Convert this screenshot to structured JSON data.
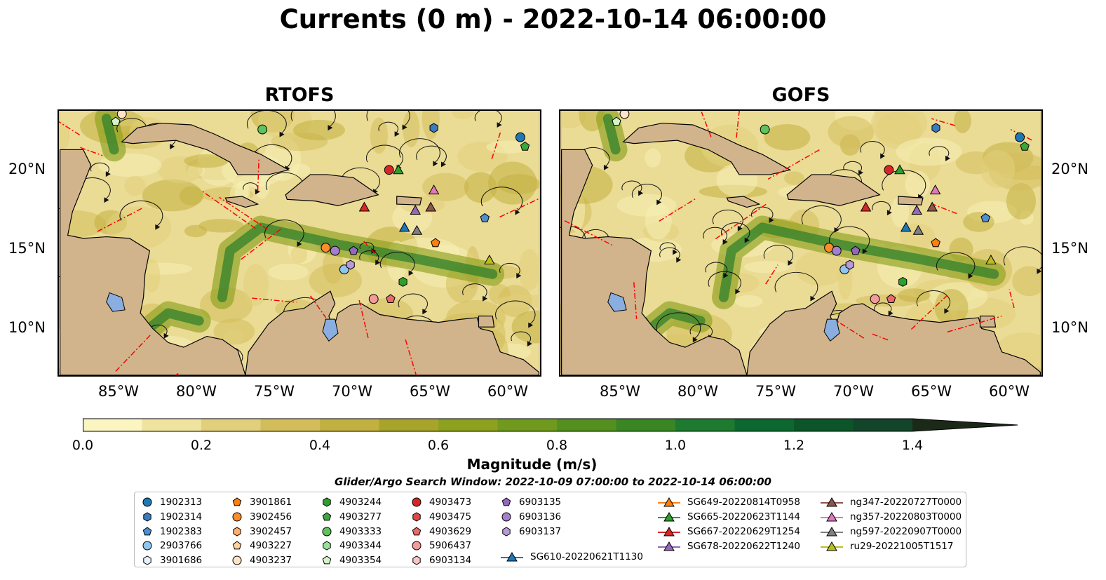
{
  "title": "Currents (0 m) - 2022-10-14 06:00:00",
  "panels": [
    {
      "name": "rtofs",
      "title": "RTOFS"
    },
    {
      "name": "gofs",
      "title": "GOFS"
    }
  ],
  "axes": {
    "x_ticks": [
      "85°W",
      "80°W",
      "75°W",
      "70°W",
      "65°W",
      "60°W"
    ],
    "y_ticks": [
      "20°N",
      "15°N",
      "10°N"
    ]
  },
  "colorbar": {
    "label": "Magnitude (m/s)",
    "ticks": [
      "0.0",
      "0.2",
      "0.4",
      "0.6",
      "0.8",
      "1.0",
      "1.2",
      "1.4"
    ],
    "range": [
      0,
      1.5
    ],
    "extend": "max",
    "colors": [
      "#fbf5c1",
      "#f0e3a0",
      "#e2cf7c",
      "#d3bd5b",
      "#c2b040",
      "#a8a42b",
      "#8ea11e",
      "#6f9a1e",
      "#549020",
      "#3a8624",
      "#1d7a2e",
      "#0d6830",
      "#0b5528",
      "#12452a",
      "#1a3420",
      "#1b2a18"
    ]
  },
  "search_window": "Glider/Argo Search Window: 2022-10-09 07:00:00 to 2022-10-14 06:00:00",
  "legend": {
    "argo": [
      {
        "label": "1902313",
        "marker": "circle",
        "color": "#1f77b4"
      },
      {
        "label": "1902314",
        "marker": "hexagon",
        "color": "#3a7bbf"
      },
      {
        "label": "1902383",
        "marker": "pentagon",
        "color": "#4f8fd0"
      },
      {
        "label": "2903766",
        "marker": "circle",
        "color": "#8fc4ec"
      },
      {
        "label": "3901686",
        "marker": "hexagon",
        "color": "#e8f2fb"
      },
      {
        "label": "3901861",
        "marker": "pentagon",
        "color": "#ff7f0e"
      },
      {
        "label": "3902456",
        "marker": "circle",
        "color": "#ff8c2a"
      },
      {
        "label": "3902457",
        "marker": "hexagon",
        "color": "#ffae6b"
      },
      {
        "label": "4903227",
        "marker": "pentagon",
        "color": "#ffd0a0"
      },
      {
        "label": "4903237",
        "marker": "circle",
        "color": "#ffe3c8"
      },
      {
        "label": "4903244",
        "marker": "hexagon",
        "color": "#2ca02c"
      },
      {
        "label": "4903277",
        "marker": "pentagon",
        "color": "#3aa83a"
      },
      {
        "label": "4903333",
        "marker": "circle",
        "color": "#5fc25f"
      },
      {
        "label": "4903344",
        "marker": "hexagon",
        "color": "#98e098"
      },
      {
        "label": "4903354",
        "marker": "pentagon",
        "color": "#d2f5c8"
      },
      {
        "label": "4903473",
        "marker": "circle",
        "color": "#d62728"
      },
      {
        "label": "4903475",
        "marker": "hexagon",
        "color": "#e04848"
      },
      {
        "label": "4903629",
        "marker": "pentagon",
        "color": "#ea6a6a"
      },
      {
        "label": "5906437",
        "marker": "circle",
        "color": "#f39a9a"
      },
      {
        "label": "6903134",
        "marker": "hexagon",
        "color": "#f8c4c4"
      },
      {
        "label": "6903135",
        "marker": "pentagon",
        "color": "#9467bd"
      },
      {
        "label": "6903136",
        "marker": "circle",
        "color": "#a57fcc"
      },
      {
        "label": "6903137",
        "marker": "hexagon",
        "color": "#b99ad8"
      }
    ],
    "gliders": [
      {
        "label": "SG610-20220621T1130",
        "color": "#1f77b4"
      },
      {
        "label": "SG649-20220814T0958",
        "color": "#ff7f0e"
      },
      {
        "label": "SG665-20220623T1144",
        "color": "#2ca02c"
      },
      {
        "label": "SG667-20220629T1254",
        "color": "#d62728"
      },
      {
        "label": "SG678-20220622T1240",
        "color": "#9467bd"
      },
      {
        "label": "ng347-20220727T0000",
        "color": "#8c564b"
      },
      {
        "label": "ng357-20220803T0000",
        "color": "#e377c2"
      },
      {
        "label": "ng597-20220907T0000",
        "color": "#7f7f7f"
      },
      {
        "label": "ru29-20221005T1517",
        "color": "#bcbd22"
      }
    ]
  },
  "map_data": {
    "lon_range": [
      -89,
      -58
    ],
    "lat_range": [
      7,
      24
    ],
    "land_color": "#d2b48c",
    "lake_color": "#8aaee0",
    "eez_line_color": "#ff0000",
    "argo_positions": [
      {
        "label": "1902313",
        "lon": -59.2,
        "lat": 22.3
      },
      {
        "label": "1902314",
        "lon": -64.8,
        "lat": 22.9
      },
      {
        "label": "2903766",
        "lon": -70.6,
        "lat": 13.8
      },
      {
        "label": "3901861",
        "lon": -64.7,
        "lat": 15.5
      },
      {
        "label": "3902456",
        "lon": -71.8,
        "lat": 15.2
      },
      {
        "label": "4903237",
        "lon": -85.0,
        "lat": 23.8
      },
      {
        "label": "4903244",
        "lon": -66.8,
        "lat": 13.0
      },
      {
        "label": "4903333",
        "lon": -75.9,
        "lat": 22.8
      },
      {
        "label": "4903354",
        "lon": -85.4,
        "lat": 23.3
      },
      {
        "label": "4903473",
        "lon": -67.7,
        "lat": 20.2
      },
      {
        "label": "5906437",
        "lon": -68.7,
        "lat": 11.9
      },
      {
        "label": "4903629",
        "lon": -67.6,
        "lat": 11.9
      },
      {
        "label": "6903135",
        "lon": -70.0,
        "lat": 15.0
      },
      {
        "label": "6903136",
        "lon": -71.2,
        "lat": 15.0
      },
      {
        "label": "6903137",
        "lon": -70.2,
        "lat": 14.1
      },
      {
        "label": "4903277",
        "lon": -58.9,
        "lat": 21.7
      },
      {
        "label": "1902383",
        "lon": -61.5,
        "lat": 17.1
      }
    ],
    "glider_positions": [
      {
        "label": "SG610-20220621T1130",
        "lon": -66.7,
        "lat": 16.5
      },
      {
        "label": "SG665-20220623T1144",
        "lon": -67.1,
        "lat": 20.2
      },
      {
        "label": "SG667-20220629T1254",
        "lon": -69.3,
        "lat": 17.8
      },
      {
        "label": "SG678-20220622T1240",
        "lon": -66.0,
        "lat": 17.6
      },
      {
        "label": "ng347-20220727T0000",
        "lon": -65.0,
        "lat": 17.8
      },
      {
        "label": "ng357-20220803T0000",
        "lon": -64.8,
        "lat": 18.9
      },
      {
        "label": "ng597-20220907T0000",
        "lon": -65.9,
        "lat": 16.3
      },
      {
        "label": "ru29-20221005T1517",
        "lon": -61.2,
        "lat": 14.4
      }
    ]
  }
}
